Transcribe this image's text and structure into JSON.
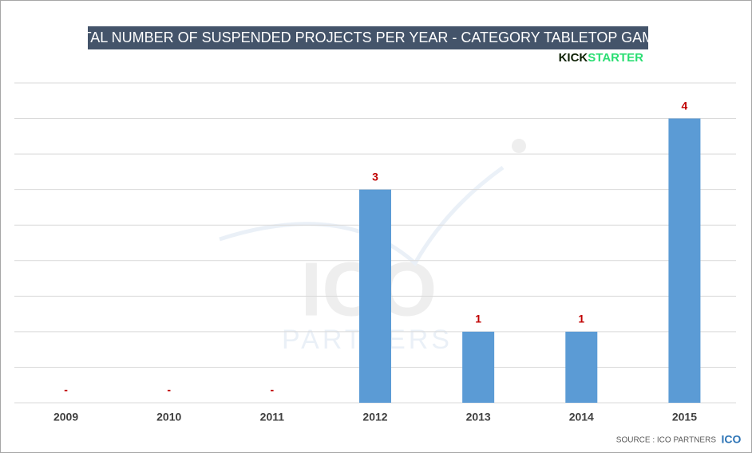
{
  "chart_data": {
    "type": "bar",
    "title": "TOTAL NUMBER OF SUSPENDED PROJECTS PER YEAR - CATEGORY TABLETOP GAMES",
    "brand": {
      "kick": "KICK",
      "starter": "STARTER"
    },
    "watermark": {
      "top": "ICO",
      "bottom": "PARTNERS"
    },
    "source": "SOURCE : ICO PARTNERS",
    "source_logo": "ICO",
    "categories": [
      "2009",
      "2010",
      "2011",
      "2012",
      "2013",
      "2014",
      "2015"
    ],
    "values": [
      0,
      0,
      0,
      3,
      1,
      1,
      4
    ],
    "value_labels": [
      "-",
      "-",
      "-",
      "3",
      "1",
      "1",
      "4"
    ],
    "color": "#5b9bd5",
    "label_color": "#c00000",
    "ylim": [
      0,
      4.5
    ],
    "yticks": [
      0,
      0.5,
      1,
      1.5,
      2,
      2.5,
      3,
      3.5,
      4,
      4.5
    ],
    "grid": true
  }
}
